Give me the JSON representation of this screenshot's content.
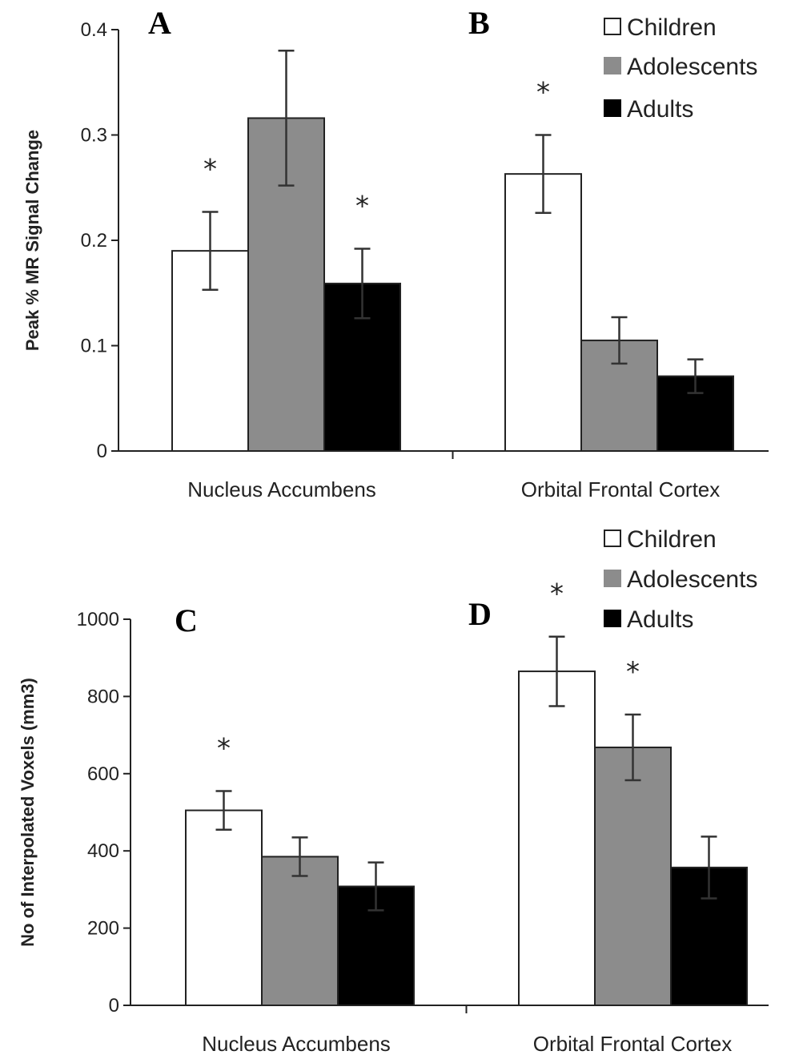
{
  "chart_data": [
    {
      "type": "bar",
      "ylabel": "Peak % MR Signal Change",
      "ylim": [
        0,
        0.4
      ],
      "yticks": [
        "0",
        "0.1",
        "0.2",
        "0.3",
        "0.4"
      ],
      "yticks_values": [
        0,
        0.1,
        0.2,
        0.3,
        0.4
      ],
      "categories": [
        "Nucleus Accumbens",
        "Orbital Frontal Cortex"
      ],
      "panel_labels": [
        "A",
        "B"
      ],
      "series": [
        {
          "name": "Children",
          "color": "#ffffff",
          "values": [
            0.19,
            0.263
          ],
          "errors": [
            0.037,
            0.037
          ]
        },
        {
          "name": "Adolescents",
          "color": "#8c8c8c",
          "values": [
            0.316,
            0.105
          ],
          "errors": [
            0.064,
            0.022
          ]
        },
        {
          "name": "Adults",
          "color": "#000000",
          "values": [
            0.159,
            0.071
          ],
          "errors": [
            0.033,
            0.016
          ]
        }
      ],
      "significance": [
        [
          true,
          false,
          true
        ],
        [
          true,
          false,
          false
        ]
      ],
      "significance_mark": "*",
      "legend": "top-right"
    },
    {
      "type": "bar",
      "ylabel": "No of Interpolated Voxels (mm3)",
      "ylim": [
        0,
        1000
      ],
      "yticks": [
        "0",
        "200",
        "400",
        "600",
        "800",
        "1000"
      ],
      "yticks_values": [
        0,
        200,
        400,
        600,
        800,
        1000
      ],
      "categories": [
        "Nucleus Accumbens",
        "Orbital Frontal Cortex"
      ],
      "panel_labels": [
        "C",
        "D"
      ],
      "series": [
        {
          "name": "Children",
          "color": "#ffffff",
          "values": [
            505,
            865
          ],
          "errors": [
            50,
            90
          ]
        },
        {
          "name": "Adolescents",
          "color": "#8c8c8c",
          "values": [
            385,
            668
          ],
          "errors": [
            50,
            85
          ]
        },
        {
          "name": "Adults",
          "color": "#000000",
          "values": [
            308,
            357
          ],
          "errors": [
            62,
            80
          ]
        }
      ],
      "significance": [
        [
          true,
          false,
          false
        ],
        [
          true,
          true,
          false
        ]
      ],
      "significance_mark": "*",
      "legend": "top-right"
    }
  ]
}
